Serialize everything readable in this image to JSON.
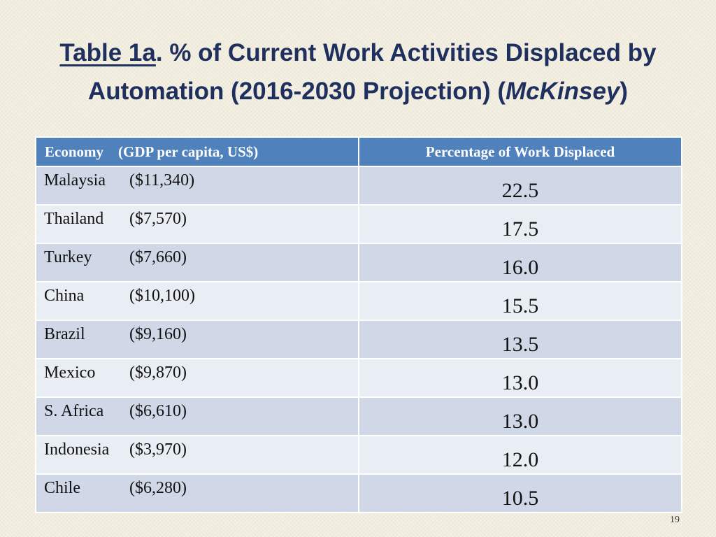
{
  "slide": {
    "title_label": "Table 1a",
    "title_main": ". % of Current Work Activities Displaced by Automation (2016-2030 Projection) (",
    "title_source": "McKinsey",
    "title_end": ")",
    "page_number": "19"
  },
  "table": {
    "header_economy": "Economy    (GDP per capita, US$)",
    "header_percentage": "Percentage of Work Displaced",
    "rows": [
      {
        "economy": "Malaysia",
        "gdp": "($11,340)",
        "percentage": "22.5"
      },
      {
        "economy": "Thailand",
        "gdp": "($7,570)",
        "percentage": "17.5"
      },
      {
        "economy": "Turkey",
        "gdp": "($7,660)",
        "percentage": "16.0"
      },
      {
        "economy": "China",
        "gdp": "($10,100)",
        "percentage": "15.5"
      },
      {
        "economy": "Brazil",
        "gdp": "($9,160)",
        "percentage": "13.5"
      },
      {
        "economy": "Mexico",
        "gdp": "($9,870)",
        "percentage": "13.0"
      },
      {
        "economy": "S. Africa",
        "gdp": "($6,610)",
        "percentage": "13.0"
      },
      {
        "economy": "Indonesia",
        "gdp": "($3,970)",
        "percentage": "12.0"
      },
      {
        "economy": "Chile",
        "gdp": "($6,280)",
        "percentage": "10.5"
      }
    ]
  }
}
